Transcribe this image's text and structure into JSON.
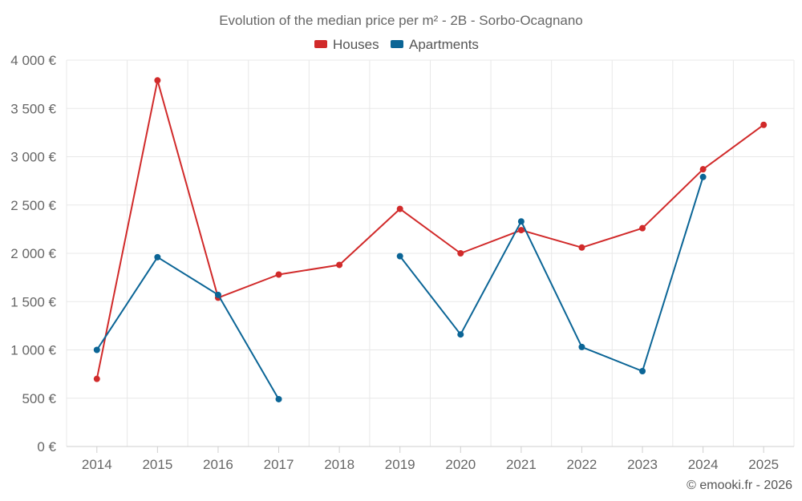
{
  "chart_data": {
    "type": "line",
    "title": "Evolution of the median price per m² - 2B - Sorbo-Ocagnano",
    "xlabel": "",
    "ylabel": "",
    "x": [
      2014,
      2015,
      2016,
      2017,
      2018,
      2019,
      2020,
      2021,
      2022,
      2023,
      2024,
      2025
    ],
    "x_labels": [
      "2014",
      "2015",
      "2016",
      "2017",
      "2018",
      "2019",
      "2020",
      "2021",
      "2022",
      "2023",
      "2024",
      "2025"
    ],
    "ylim": [
      0,
      4000
    ],
    "y_ticks": [
      0,
      500,
      1000,
      1500,
      2000,
      2500,
      3000,
      3500,
      4000
    ],
    "y_tick_labels": [
      "0 €",
      "500 €",
      "1 000 €",
      "1 500 €",
      "2 000 €",
      "2 500 €",
      "3 000 €",
      "3 500 €",
      "4 000 €"
    ],
    "grid": true,
    "legend_position": "top-center",
    "series": [
      {
        "name": "Houses",
        "color": "#d12a2a",
        "values": [
          700,
          3790,
          1540,
          1780,
          1880,
          2460,
          2000,
          2240,
          2060,
          2260,
          2870,
          3330
        ]
      },
      {
        "name": "Apartments",
        "color": "#0b6596",
        "values": [
          1000,
          1960,
          1570,
          490,
          null,
          1970,
          1160,
          2330,
          1030,
          780,
          2790,
          null
        ]
      }
    ]
  },
  "credit": "© emooki.fr - 2026"
}
